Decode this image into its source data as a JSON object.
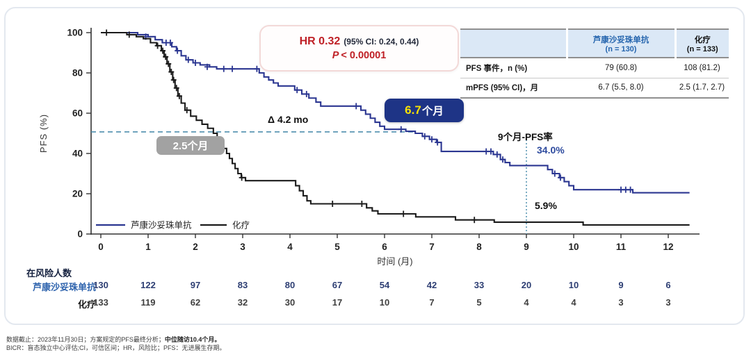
{
  "hr_box": {
    "hr": "HR 0.32",
    "ci": "(95% CI: 0.24, 0.44)",
    "p_label": "P",
    "p_value": "< 0.00001"
  },
  "summary_table": {
    "col_headers": [
      {
        "line1": "芦康沙妥珠单抗",
        "line2": "(n = 130)"
      },
      {
        "line1": "化疗",
        "line2": "(n = 133)"
      }
    ],
    "rows": [
      {
        "label": "PFS 事件，n (%)",
        "values": [
          "79 (60.8)",
          "108 (81.2)"
        ]
      },
      {
        "label": "mPFS (95% CI)，月",
        "values": [
          "6.7 (5.5, 8.0)",
          "2.5 (1.7, 2.7)"
        ]
      }
    ]
  },
  "annotations": {
    "delta": "Δ 4.2 mo",
    "median_drug_value": "6.7",
    "median_drug_unit": "个月",
    "median_chemo": "2.5个月",
    "pfs9_title": "9个月-PFS率",
    "pfs9_drug": "34.0%",
    "pfs9_chemo": "5.9%"
  },
  "legend": {
    "items": [
      {
        "label": "芦康沙妥珠单抗",
        "color": "#2b3691"
      },
      {
        "label": "化疗",
        "color": "#1b1b1b"
      }
    ]
  },
  "chart_data": {
    "type": "line",
    "subtype": "kaplan-meier-step",
    "title": "",
    "xlabel": "时间 (月)",
    "ylabel": "PFS (%)",
    "xlim": [
      0,
      12.5
    ],
    "ylim": [
      0,
      100
    ],
    "x_ticks": [
      0,
      1,
      2,
      3,
      4,
      5,
      6,
      7,
      8,
      9,
      10,
      11,
      12
    ],
    "y_ticks": [
      0,
      20,
      40,
      60,
      80,
      100
    ],
    "grid": false,
    "reference_lines": {
      "horizontal_50pct": 50,
      "vertical_month": 9
    },
    "series": [
      {
        "name": "芦康沙妥珠单抗",
        "color": "#2b3691",
        "median_months": 6.7,
        "pfs_9mo_pct": 34.0,
        "steps": [
          [
            0,
            100
          ],
          [
            0.78,
            99
          ],
          [
            1.0,
            98
          ],
          [
            1.15,
            96.5
          ],
          [
            1.3,
            95
          ],
          [
            1.5,
            93
          ],
          [
            1.6,
            91
          ],
          [
            1.7,
            88.5
          ],
          [
            1.8,
            86.5
          ],
          [
            1.95,
            85
          ],
          [
            2.1,
            84
          ],
          [
            2.3,
            83
          ],
          [
            2.45,
            82
          ],
          [
            3.35,
            80
          ],
          [
            3.45,
            78
          ],
          [
            3.55,
            76.5
          ],
          [
            3.65,
            75
          ],
          [
            3.75,
            73.5
          ],
          [
            4.1,
            71.5
          ],
          [
            4.25,
            69.5
          ],
          [
            4.4,
            67.5
          ],
          [
            4.55,
            65.5
          ],
          [
            4.65,
            63.5
          ],
          [
            5.5,
            61.5
          ],
          [
            5.6,
            59.5
          ],
          [
            5.7,
            57.5
          ],
          [
            5.8,
            55.5
          ],
          [
            5.9,
            53.5
          ],
          [
            6.0,
            52
          ],
          [
            6.45,
            51
          ],
          [
            6.65,
            50
          ],
          [
            6.8,
            48.5
          ],
          [
            6.95,
            47
          ],
          [
            7.1,
            45.5
          ],
          [
            7.2,
            41
          ],
          [
            8.3,
            39.5
          ],
          [
            8.45,
            37
          ],
          [
            8.55,
            35.5
          ],
          [
            8.65,
            34
          ],
          [
            9.45,
            32
          ],
          [
            9.55,
            30
          ],
          [
            9.7,
            28
          ],
          [
            9.8,
            26
          ],
          [
            9.9,
            24
          ],
          [
            10.0,
            22
          ],
          [
            11.25,
            20.5
          ],
          [
            12.45,
            20.5
          ]
        ],
        "censors": [
          [
            0.95,
            98
          ],
          [
            1.38,
            95
          ],
          [
            1.47,
            95
          ],
          [
            1.62,
            91
          ],
          [
            1.85,
            86.5
          ],
          [
            2.0,
            85
          ],
          [
            2.25,
            83
          ],
          [
            2.6,
            82
          ],
          [
            2.78,
            82
          ],
          [
            3.3,
            82
          ],
          [
            4.15,
            71.5
          ],
          [
            4.35,
            69.5
          ],
          [
            5.4,
            63.5
          ],
          [
            6.35,
            52
          ],
          [
            6.85,
            48.5
          ],
          [
            7.0,
            47
          ],
          [
            7.12,
            45.5
          ],
          [
            8.15,
            41
          ],
          [
            8.25,
            41
          ],
          [
            8.38,
            39.5
          ],
          [
            8.5,
            37
          ],
          [
            9.6,
            30
          ],
          [
            9.72,
            28
          ],
          [
            11.0,
            22
          ],
          [
            11.1,
            22
          ],
          [
            11.2,
            22
          ]
        ]
      },
      {
        "name": "化疗",
        "color": "#1b1b1b",
        "median_months": 2.5,
        "pfs_9mo_pct": 5.9,
        "steps": [
          [
            0,
            100
          ],
          [
            0.55,
            99
          ],
          [
            0.75,
            98
          ],
          [
            0.9,
            97
          ],
          [
            1.05,
            95
          ],
          [
            1.18,
            93.5
          ],
          [
            1.28,
            91
          ],
          [
            1.34,
            88
          ],
          [
            1.4,
            84.5
          ],
          [
            1.46,
            80.5
          ],
          [
            1.52,
            76.5
          ],
          [
            1.57,
            72.5
          ],
          [
            1.63,
            68.5
          ],
          [
            1.7,
            65
          ],
          [
            1.78,
            61.5
          ],
          [
            1.9,
            58.5
          ],
          [
            2.02,
            56.5
          ],
          [
            2.14,
            54.5
          ],
          [
            2.26,
            52.5
          ],
          [
            2.38,
            50
          ],
          [
            2.46,
            47.5
          ],
          [
            2.53,
            45
          ],
          [
            2.6,
            42.5
          ],
          [
            2.66,
            40
          ],
          [
            2.72,
            37.5
          ],
          [
            2.78,
            35
          ],
          [
            2.84,
            32.5
          ],
          [
            2.9,
            30
          ],
          [
            2.97,
            28
          ],
          [
            3.06,
            26.5
          ],
          [
            4.12,
            24
          ],
          [
            4.2,
            21.5
          ],
          [
            4.28,
            19
          ],
          [
            4.36,
            16.5
          ],
          [
            4.44,
            15
          ],
          [
            5.62,
            13
          ],
          [
            5.74,
            11.5
          ],
          [
            5.86,
            10
          ],
          [
            6.66,
            8.5
          ],
          [
            7.5,
            7
          ],
          [
            8.32,
            5.9
          ],
          [
            10.2,
            4.5
          ],
          [
            12.45,
            4.5
          ]
        ],
        "censors": [
          [
            0.12,
            100
          ],
          [
            0.6,
            99
          ],
          [
            1.2,
            93.5
          ],
          [
            1.31,
            91
          ],
          [
            1.37,
            88
          ],
          [
            1.43,
            84.5
          ],
          [
            1.49,
            80.5
          ],
          [
            1.54,
            76.5
          ],
          [
            1.6,
            72.5
          ],
          [
            1.66,
            68.5
          ],
          [
            1.82,
            61.5
          ],
          [
            2.98,
            28
          ],
          [
            4.9,
            15
          ],
          [
            5.52,
            15
          ],
          [
            6.4,
            10
          ],
          [
            7.9,
            7
          ]
        ]
      }
    ]
  },
  "risk_table": {
    "title": "在风险人数",
    "rows": [
      {
        "label": "芦康沙妥珠单抗",
        "label_color": "#2e63ad",
        "num_color": "#2d3e73",
        "counts": [
          130,
          122,
          97,
          83,
          80,
          67,
          54,
          42,
          33,
          20,
          10,
          9,
          6
        ]
      },
      {
        "label": "化疗",
        "label_color": "#1a1a1a",
        "num_color": "#3f3f3f",
        "counts": [
          133,
          119,
          62,
          32,
          30,
          17,
          10,
          7,
          5,
          4,
          4,
          3,
          3
        ]
      }
    ]
  },
  "footnotes": {
    "line1_normal": "数据截止：2023年11月30日；方案规定的PFS最终分析；",
    "line1_bold": "中位随访10.4个月。",
    "line2": "BICR：盲态独立中心评估;CI，可信区间；HR，风险比；PFS：无进展生存期。"
  }
}
